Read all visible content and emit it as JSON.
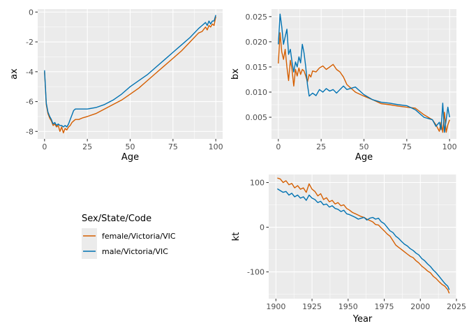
{
  "colors": {
    "female": "#d55e00",
    "male": "#0072b2",
    "panel": "#ebebeb"
  },
  "legend": {
    "title": "Sex/State/Code",
    "entries": [
      {
        "label": "female/Victoria/VIC",
        "color": "#d55e00"
      },
      {
        "label": "male/Victoria/VIC",
        "color": "#0072b2"
      }
    ]
  },
  "chart_data": [
    {
      "type": "line",
      "title": "",
      "xlabel": "Age",
      "ylabel": "ax",
      "xlim": [
        -4,
        104
      ],
      "ylim": [
        -8.5,
        0.2
      ],
      "xticks": [
        0,
        25,
        50,
        75,
        100
      ],
      "xtick_labels": [
        "0",
        "25",
        "50",
        "75",
        "100"
      ],
      "yticks": [
        0,
        -2,
        -4,
        -6,
        -8
      ],
      "ytick_labels": [
        "0",
        "-2",
        "-4",
        "-6",
        "-8"
      ],
      "series": [
        {
          "name": "female/Victoria/VIC",
          "color": "#d55e00",
          "x": [
            0,
            1,
            2,
            3,
            4,
            5,
            6,
            7,
            8,
            9,
            10,
            11,
            12,
            13,
            14,
            15,
            16,
            17,
            18,
            20,
            22,
            25,
            30,
            35,
            40,
            45,
            50,
            55,
            60,
            65,
            70,
            75,
            80,
            85,
            90,
            92,
            94,
            95,
            96,
            97,
            98,
            99,
            100
          ],
          "y": [
            -4.0,
            -6.2,
            -6.8,
            -7.1,
            -7.3,
            -7.6,
            -7.5,
            -7.7,
            -7.6,
            -8.0,
            -7.7,
            -8.1,
            -7.8,
            -7.9,
            -7.7,
            -7.6,
            -7.4,
            -7.3,
            -7.2,
            -7.2,
            -7.1,
            -7.0,
            -6.8,
            -6.5,
            -6.2,
            -5.9,
            -5.5,
            -5.1,
            -4.6,
            -4.1,
            -3.6,
            -3.1,
            -2.6,
            -2.0,
            -1.4,
            -1.3,
            -1.0,
            -1.2,
            -0.9,
            -1.0,
            -0.8,
            -0.9,
            -0.3
          ]
        },
        {
          "name": "male/Victoria/VIC",
          "color": "#0072b2",
          "x": [
            0,
            1,
            2,
            3,
            4,
            5,
            6,
            7,
            8,
            9,
            10,
            11,
            12,
            13,
            14,
            15,
            16,
            17,
            18,
            20,
            22,
            25,
            30,
            35,
            40,
            45,
            50,
            55,
            60,
            65,
            70,
            75,
            80,
            85,
            90,
            92,
            94,
            95,
            96,
            97,
            98,
            99,
            100
          ],
          "y": [
            -3.9,
            -6.1,
            -6.7,
            -7.0,
            -7.2,
            -7.5,
            -7.4,
            -7.6,
            -7.5,
            -7.6,
            -7.6,
            -7.7,
            -7.6,
            -7.7,
            -7.5,
            -7.2,
            -6.9,
            -6.6,
            -6.5,
            -6.5,
            -6.5,
            -6.5,
            -6.4,
            -6.2,
            -5.9,
            -5.5,
            -5.0,
            -4.6,
            -4.2,
            -3.7,
            -3.2,
            -2.7,
            -2.2,
            -1.7,
            -1.1,
            -0.9,
            -0.7,
            -0.9,
            -0.6,
            -0.8,
            -0.6,
            -0.6,
            -0.2
          ]
        }
      ]
    },
    {
      "type": "line",
      "title": "",
      "xlabel": "Age",
      "ylabel": "bx",
      "xlim": [
        -4,
        104
      ],
      "ylim": [
        0.0007,
        0.0265
      ],
      "xticks": [
        0,
        25,
        50,
        75,
        100
      ],
      "xtick_labels": [
        "0",
        "25",
        "50",
        "75",
        "100"
      ],
      "yticks": [
        0.005,
        0.01,
        0.015,
        0.02,
        0.025
      ],
      "ytick_labels": [
        "0.005",
        "0.010",
        "0.015",
        "0.020",
        "0.025"
      ],
      "series": [
        {
          "name": "female/Victoria/VIC",
          "color": "#d55e00",
          "x": [
            0,
            1,
            2,
            3,
            4,
            5,
            6,
            7,
            8,
            9,
            10,
            11,
            12,
            13,
            14,
            15,
            16,
            17,
            18,
            19,
            20,
            22,
            24,
            26,
            28,
            30,
            32,
            34,
            36,
            38,
            40,
            45,
            50,
            55,
            60,
            65,
            70,
            75,
            80,
            85,
            90,
            92,
            94,
            95,
            96,
            97,
            98,
            99,
            100
          ],
          "y": [
            0.0157,
            0.0218,
            0.018,
            0.0165,
            0.0185,
            0.015,
            0.0123,
            0.0163,
            0.0145,
            0.0112,
            0.0145,
            0.0132,
            0.0148,
            0.0135,
            0.0145,
            0.0142,
            0.0132,
            0.012,
            0.0135,
            0.013,
            0.0142,
            0.014,
            0.0148,
            0.0152,
            0.0145,
            0.015,
            0.0155,
            0.0145,
            0.014,
            0.013,
            0.0115,
            0.01,
            0.0092,
            0.0085,
            0.0077,
            0.0075,
            0.0072,
            0.007,
            0.0068,
            0.0055,
            0.0045,
            0.0035,
            0.0022,
            0.004,
            0.002,
            0.006,
            0.002,
            0.0035,
            0.0045
          ]
        },
        {
          "name": "male/Victoria/VIC",
          "color": "#0072b2",
          "x": [
            0,
            1,
            2,
            3,
            4,
            5,
            6,
            7,
            8,
            9,
            10,
            11,
            12,
            13,
            14,
            15,
            16,
            17,
            18,
            19,
            20,
            22,
            24,
            26,
            28,
            30,
            32,
            34,
            36,
            38,
            40,
            45,
            50,
            55,
            60,
            65,
            70,
            75,
            80,
            85,
            90,
            92,
            94,
            95,
            96,
            97,
            98,
            99,
            100
          ],
          "y": [
            0.0195,
            0.0255,
            0.023,
            0.0195,
            0.021,
            0.0225,
            0.0175,
            0.0185,
            0.016,
            0.014,
            0.016,
            0.015,
            0.017,
            0.0158,
            0.0195,
            0.0178,
            0.015,
            0.0115,
            0.0092,
            0.0095,
            0.0098,
            0.0093,
            0.0105,
            0.01,
            0.0107,
            0.0102,
            0.0105,
            0.0098,
            0.0105,
            0.0112,
            0.0105,
            0.011,
            0.0095,
            0.0085,
            0.008,
            0.0078,
            0.0075,
            0.0073,
            0.0065,
            0.005,
            0.0045,
            0.0032,
            0.004,
            0.0025,
            0.0078,
            0.002,
            0.0045,
            0.007,
            0.005
          ]
        }
      ]
    },
    {
      "type": "line",
      "title": "",
      "xlabel": "Year",
      "ylabel": "kt",
      "xlim": [
        1895,
        2025
      ],
      "ylim": [
        -160,
        118
      ],
      "xticks": [
        1900,
        1925,
        1950,
        1975,
        2000,
        2025
      ],
      "xtick_labels": [
        "1900",
        "1925",
        "1950",
        "1975",
        "2000",
        "2025"
      ],
      "yticks": [
        100,
        0,
        -100
      ],
      "ytick_labels": [
        "100",
        "0",
        "-100"
      ],
      "series": [
        {
          "name": "female/Victoria/VIC",
          "color": "#d55e00",
          "x": [
            1901,
            1903,
            1905,
            1907,
            1909,
            1911,
            1913,
            1915,
            1917,
            1919,
            1921,
            1923,
            1925,
            1927,
            1929,
            1931,
            1933,
            1935,
            1937,
            1939,
            1941,
            1943,
            1945,
            1947,
            1949,
            1951,
            1953,
            1955,
            1957,
            1959,
            1961,
            1963,
            1965,
            1967,
            1969,
            1971,
            1973,
            1975,
            1977,
            1979,
            1981,
            1983,
            1985,
            1987,
            1989,
            1991,
            1993,
            1995,
            1997,
            1999,
            2001,
            2003,
            2005,
            2007,
            2009,
            2011,
            2013,
            2015,
            2017,
            2019,
            2020
          ],
          "y": [
            110,
            108,
            100,
            104,
            95,
            98,
            88,
            93,
            85,
            88,
            78,
            97,
            85,
            80,
            70,
            75,
            62,
            66,
            57,
            60,
            52,
            55,
            48,
            50,
            42,
            38,
            33,
            30,
            27,
            24,
            22,
            18,
            15,
            12,
            6,
            5,
            -2,
            -8,
            -15,
            -20,
            -30,
            -40,
            -45,
            -50,
            -55,
            -60,
            -65,
            -68,
            -75,
            -80,
            -87,
            -92,
            -98,
            -102,
            -110,
            -115,
            -122,
            -128,
            -132,
            -140,
            -148
          ]
        },
        {
          "name": "male/Victoria/VIC",
          "color": "#0072b2",
          "x": [
            1901,
            1903,
            1905,
            1907,
            1909,
            1911,
            1913,
            1915,
            1917,
            1919,
            1921,
            1923,
            1925,
            1927,
            1929,
            1931,
            1933,
            1935,
            1937,
            1939,
            1941,
            1943,
            1945,
            1947,
            1949,
            1951,
            1953,
            1955,
            1957,
            1959,
            1961,
            1963,
            1965,
            1967,
            1969,
            1971,
            1973,
            1975,
            1977,
            1979,
            1981,
            1983,
            1985,
            1987,
            1989,
            1991,
            1993,
            1995,
            1997,
            1999,
            2001,
            2003,
            2005,
            2007,
            2009,
            2011,
            2013,
            2015,
            2017,
            2019,
            2020
          ],
          "y": [
            86,
            82,
            78,
            80,
            72,
            76,
            68,
            72,
            65,
            68,
            60,
            72,
            65,
            62,
            55,
            58,
            50,
            52,
            45,
            48,
            42,
            40,
            35,
            38,
            30,
            28,
            25,
            22,
            18,
            20,
            22,
            16,
            20,
            22,
            18,
            20,
            12,
            8,
            0,
            -8,
            -12,
            -20,
            -25,
            -32,
            -38,
            -42,
            -48,
            -52,
            -58,
            -62,
            -70,
            -75,
            -82,
            -88,
            -96,
            -102,
            -110,
            -118,
            -126,
            -132,
            -140
          ]
        }
      ]
    }
  ]
}
